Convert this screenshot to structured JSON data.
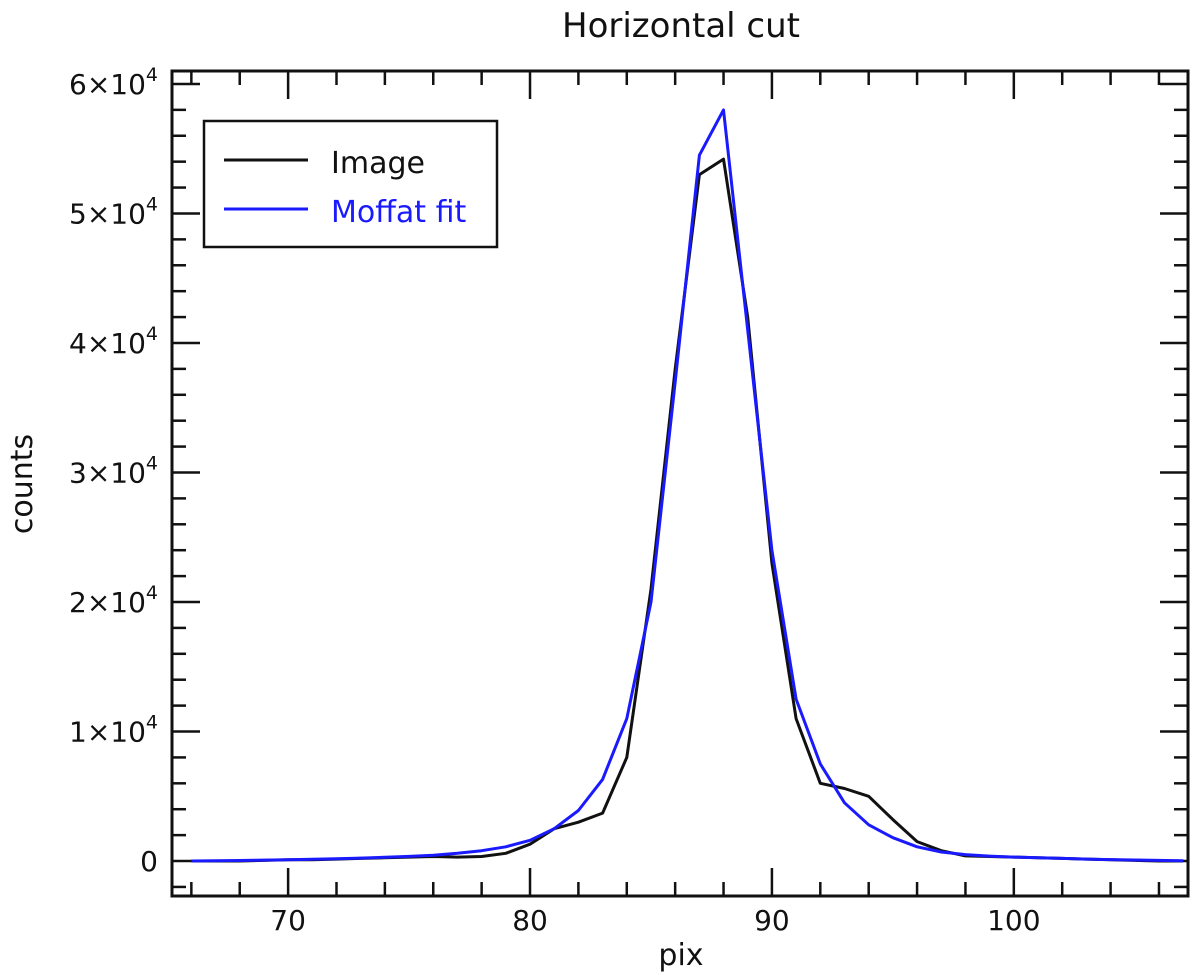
{
  "chart_data": {
    "type": "line",
    "title": "Horizontal cut",
    "xlabel": "pix",
    "ylabel": "counts",
    "xlim": [
      65.2,
      107.2
    ],
    "ylim": [
      -2700,
      61000
    ],
    "x_ticks": [
      70,
      80,
      90,
      100
    ],
    "y_ticks": [
      {
        "value": 0,
        "mantissa": "0",
        "exp": ""
      },
      {
        "value": 10000,
        "mantissa": "1×10",
        "exp": "4"
      },
      {
        "value": 20000,
        "mantissa": "2×10",
        "exp": "4"
      },
      {
        "value": 30000,
        "mantissa": "3×10",
        "exp": "4"
      },
      {
        "value": 40000,
        "mantissa": "4×10",
        "exp": "4"
      },
      {
        "value": 50000,
        "mantissa": "5×10",
        "exp": "4"
      },
      {
        "value": 60000,
        "mantissa": "6×10",
        "exp": "4"
      }
    ],
    "legend_position": "top-left",
    "series": [
      {
        "name": "Image",
        "color": "#111111",
        "x": [
          66,
          67,
          68,
          69,
          70,
          71,
          72,
          73,
          74,
          75,
          76,
          77,
          78,
          79,
          80,
          81,
          82,
          83,
          84,
          85,
          86,
          87,
          88,
          89,
          90,
          91,
          92,
          93,
          94,
          95,
          96,
          97,
          98,
          99,
          100,
          101,
          102,
          103,
          104,
          105,
          106,
          107
        ],
        "y": [
          0,
          0,
          0,
          50,
          100,
          100,
          150,
          200,
          250,
          300,
          350,
          300,
          350,
          600,
          1300,
          2500,
          3000,
          3700,
          8000,
          21000,
          38000,
          53000,
          54200,
          42000,
          23000,
          11000,
          6000,
          5600,
          5000,
          3200,
          1500,
          800,
          400,
          350,
          300,
          250,
          200,
          150,
          100,
          50,
          0,
          0
        ]
      },
      {
        "name": "Moffat fit",
        "color": "#1a1aff",
        "x": [
          66,
          67,
          68,
          69,
          70,
          71,
          72,
          73,
          74,
          75,
          76,
          77,
          78,
          79,
          80,
          81,
          82,
          83,
          84,
          85,
          86,
          87,
          88,
          89,
          90,
          91,
          92,
          93,
          94,
          95,
          96,
          97,
          98,
          99,
          100,
          101,
          102,
          103,
          104,
          105,
          106,
          107
        ],
        "y": [
          0,
          20,
          40,
          70,
          100,
          140,
          180,
          230,
          290,
          360,
          450,
          600,
          800,
          1100,
          1600,
          2500,
          3900,
          6300,
          11000,
          20000,
          37000,
          54500,
          58000,
          41000,
          24000,
          12500,
          7500,
          4500,
          2800,
          1800,
          1100,
          700,
          500,
          380,
          300,
          250,
          200,
          150,
          110,
          80,
          50,
          20
        ]
      }
    ]
  }
}
